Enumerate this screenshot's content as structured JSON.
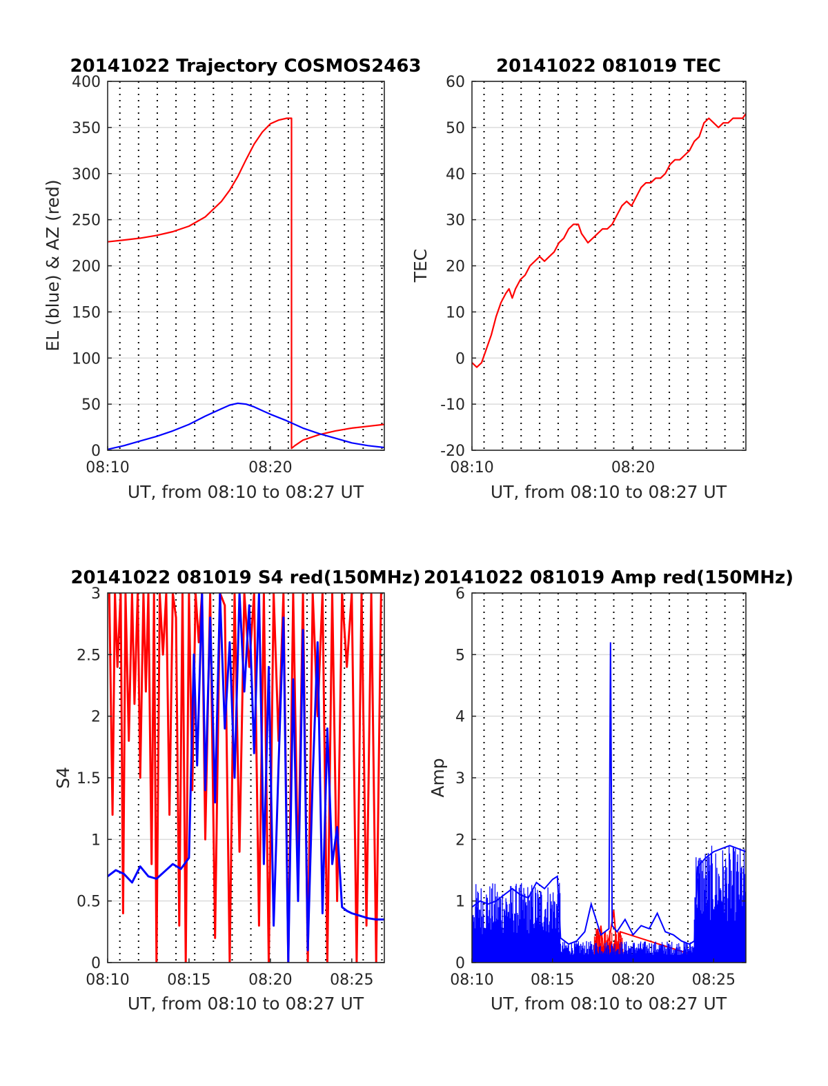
{
  "chart_data": [
    {
      "id": "traj",
      "type": "line",
      "title": "20141022 Trajectory COSMOS2463",
      "xlabel": "UT, from 08:10 to 08:27 UT",
      "ylabel": "EL (blue) & AZ (red)",
      "xlim": [
        0,
        17
      ],
      "ylim": [
        0,
        400
      ],
      "xticks": [
        0,
        10
      ],
      "xtick_labels": [
        "08:10",
        "08:20"
      ],
      "yticks": [
        0,
        50,
        100,
        150,
        200,
        250,
        300,
        350,
        400
      ],
      "ytick_labels": [
        "0",
        "50",
        "100",
        "150",
        "200",
        "250",
        "300",
        "350",
        "400"
      ],
      "grid": true,
      "vertical_dotted_gridlines_minutes": [
        0.75,
        1.9,
        3.05,
        4.2,
        5.35,
        6.5,
        7.65,
        8.8,
        9.95,
        11.1,
        12.25,
        13.4,
        14.55,
        15.7,
        16.85
      ],
      "series": [
        {
          "color": "#ff0000",
          "x": [
            0,
            1,
            2,
            3,
            4,
            5,
            6,
            7,
            7.5,
            8,
            8.5,
            9,
            9.5,
            10,
            10.5,
            11,
            11.3,
            11.3,
            11.5,
            12,
            13,
            14,
            15,
            16,
            17
          ],
          "values": [
            226,
            228,
            230,
            233,
            237,
            243,
            253,
            270,
            282,
            297,
            315,
            332,
            345,
            354,
            358,
            360,
            360,
            2,
            5,
            11,
            17,
            21,
            24,
            26,
            28
          ]
        },
        {
          "color": "#0000ff",
          "x": [
            0,
            1,
            2,
            3,
            4,
            5,
            6,
            7,
            7.5,
            8,
            8.5,
            9,
            9.5,
            10,
            11,
            12,
            13,
            14,
            15,
            16,
            17
          ],
          "values": [
            1,
            5,
            10,
            15,
            21,
            28,
            37,
            45,
            49,
            51,
            50,
            47,
            43,
            39,
            32,
            24,
            18,
            13,
            8,
            5,
            3
          ]
        }
      ]
    },
    {
      "id": "tec",
      "type": "line",
      "title": "20141022 081019 TEC",
      "xlabel": "UT, from 08:10 to 08:27 UT",
      "ylabel": "TEC",
      "xlim": [
        0,
        17
      ],
      "ylim": [
        -20,
        60
      ],
      "xticks": [
        0,
        10
      ],
      "xtick_labels": [
        "08:10",
        "08:20"
      ],
      "yticks": [
        -20,
        -10,
        0,
        10,
        20,
        30,
        40,
        50,
        60
      ],
      "ytick_labels": [
        "-20",
        "-10",
        "0",
        "10",
        "20",
        "30",
        "40",
        "50",
        "60"
      ],
      "grid": true,
      "vertical_dotted_gridlines_minutes": [
        0.75,
        1.9,
        3.05,
        4.2,
        5.35,
        6.5,
        7.65,
        8.8,
        9.95,
        11.1,
        12.25,
        13.4,
        14.55,
        15.7,
        16.85
      ],
      "series": [
        {
          "color": "#ff0000",
          "x": [
            0,
            0.3,
            0.6,
            0.9,
            1.2,
            1.5,
            1.8,
            2.1,
            2.3,
            2.5,
            2.7,
            3.0,
            3.3,
            3.6,
            3.9,
            4.2,
            4.5,
            4.8,
            5.1,
            5.4,
            5.7,
            6.0,
            6.3,
            6.6,
            6.8,
            7.0,
            7.2,
            7.5,
            7.8,
            8.1,
            8.4,
            8.7,
            9.0,
            9.3,
            9.6,
            9.9,
            10.2,
            10.5,
            10.8,
            11.1,
            11.4,
            11.7,
            12.0,
            12.3,
            12.6,
            12.9,
            13.2,
            13.5,
            13.8,
            14.1,
            14.4,
            14.7,
            15.0,
            15.3,
            15.6,
            15.9,
            16.2,
            16.5,
            16.8,
            17.0
          ],
          "values": [
            -1,
            -2,
            -1,
            2,
            5,
            9,
            12,
            14,
            15,
            13,
            15,
            17,
            18,
            20,
            21,
            22,
            21,
            22,
            23,
            25,
            26,
            28,
            29,
            29,
            27,
            26,
            25,
            26,
            27,
            28,
            28,
            29,
            31,
            33,
            34,
            33,
            35,
            37,
            38,
            38,
            39,
            39,
            40,
            42,
            43,
            43,
            44,
            45,
            47,
            48,
            51,
            52,
            51,
            50,
            51,
            51,
            52,
            52,
            52,
            53
          ]
        }
      ]
    },
    {
      "id": "s4",
      "type": "line",
      "title": "20141022 081019 S4 red(150MHz)",
      "xlabel": "UT, from 08:10 to 08:27 UT",
      "ylabel": "S4",
      "xlim": [
        0,
        17
      ],
      "ylim": [
        0,
        3
      ],
      "xticks": [
        0,
        5,
        10,
        15
      ],
      "xtick_labels": [
        "08:10",
        "08:15",
        "08:20",
        "08:25"
      ],
      "yticks": [
        0,
        0.5,
        1,
        1.5,
        2,
        2.5,
        3
      ],
      "ytick_labels": [
        "0",
        "0.5",
        "1",
        "1.5",
        "2",
        "2.5",
        "3"
      ],
      "grid": true,
      "vertical_dotted_gridlines_minutes": [
        0.75,
        1.9,
        3.05,
        4.2,
        5.35,
        6.5,
        7.65,
        8.8,
        9.95,
        11.1,
        12.25,
        13.4,
        14.55,
        15.7,
        16.85
      ],
      "series": [
        {
          "color": "#ff0000",
          "x": [
            0.1,
            0.3,
            0.45,
            0.6,
            0.8,
            0.95,
            1.1,
            1.3,
            1.5,
            1.65,
            1.85,
            2.0,
            2.2,
            2.35,
            2.5,
            2.7,
            2.85,
            3.0,
            3.2,
            3.4,
            3.6,
            3.8,
            4.0,
            4.2,
            4.4,
            4.6,
            4.8,
            5.0,
            5.2,
            5.4,
            5.6,
            5.8,
            6.0,
            6.3,
            6.6,
            6.9,
            7.2,
            7.5,
            7.8,
            8.1,
            8.4,
            8.7,
            9.0,
            9.3,
            9.6,
            9.9,
            10.2,
            10.5,
            10.8,
            11.1,
            11.4,
            11.7,
            12.0,
            12.3,
            12.6,
            12.9,
            13.2,
            13.5,
            13.8,
            14.1,
            14.4,
            14.7,
            15.0,
            15.3,
            15.6,
            15.9,
            16.2,
            16.5,
            16.8
          ],
          "values": [
            3,
            1.2,
            3,
            2.4,
            3,
            0.4,
            3,
            1.8,
            3,
            2.1,
            3,
            1.5,
            3,
            2.2,
            3,
            0.8,
            3,
            0,
            3,
            2.5,
            3,
            1.2,
            3,
            2.8,
            0.3,
            3,
            0,
            3,
            1.4,
            3,
            2.6,
            3,
            1.0,
            3,
            0.2,
            3,
            2.9,
            0,
            3,
            0.9,
            3,
            2.4,
            3,
            0.3,
            3,
            0,
            3,
            1.8,
            3,
            0,
            3,
            0.7,
            3,
            0,
            3,
            2.0,
            3,
            0,
            3,
            0.5,
            3,
            2.4,
            3,
            0,
            3,
            0.3,
            3,
            0,
            3
          ]
        },
        {
          "color": "#0000ff",
          "x": [
            0,
            0.5,
            1.0,
            1.5,
            2.0,
            2.5,
            3.0,
            3.5,
            4.0,
            4.5,
            5.0,
            5.3,
            5.5,
            5.8,
            6.0,
            6.3,
            6.6,
            6.9,
            7.2,
            7.5,
            7.8,
            8.1,
            8.4,
            8.7,
            9.0,
            9.3,
            9.6,
            9.9,
            10.2,
            10.5,
            10.8,
            11.1,
            11.4,
            11.7,
            12.0,
            12.3,
            12.6,
            12.9,
            13.2,
            13.5,
            13.8,
            14.1,
            14.4,
            14.7,
            15.0,
            15.5,
            16.0,
            16.5,
            17.0
          ],
          "values": [
            0.7,
            0.75,
            0.72,
            0.65,
            0.78,
            0.7,
            0.68,
            0.74,
            0.8,
            0.76,
            0.85,
            2.5,
            1.6,
            3.0,
            1.4,
            2.8,
            1.3,
            3.0,
            1.9,
            2.6,
            1.5,
            3.0,
            2.2,
            2.9,
            1.7,
            3.0,
            0.8,
            2.4,
            0.3,
            1.6,
            2.8,
            0,
            2.3,
            0.5,
            2.7,
            0.1,
            1.5,
            2.6,
            0.4,
            1.9,
            0.8,
            1.1,
            0.45,
            0.42,
            0.4,
            0.38,
            0.36,
            0.35,
            0.35
          ]
        }
      ]
    },
    {
      "id": "amp",
      "type": "line",
      "title": "20141022 081019 Amp red(150MHz)",
      "xlabel": "UT, from 08:10 to 08:27 UT",
      "ylabel": "Amp",
      "xlim": [
        0,
        17
      ],
      "ylim": [
        0,
        6
      ],
      "xticks": [
        0,
        5,
        10,
        15
      ],
      "xtick_labels": [
        "08:10",
        "08:15",
        "08:20",
        "08:25"
      ],
      "yticks": [
        0,
        1,
        2,
        3,
        4,
        5,
        6
      ],
      "ytick_labels": [
        "0",
        "1",
        "2",
        "3",
        "4",
        "5",
        "6"
      ],
      "grid": true,
      "vertical_dotted_gridlines_minutes": [
        0.75,
        1.9,
        3.05,
        4.2,
        5.35,
        6.5,
        7.65,
        8.8,
        9.95,
        11.1,
        12.25,
        13.4,
        14.55,
        15.7,
        16.85
      ],
      "series": [
        {
          "color": "#ff0000",
          "x": [
            7.6,
            7.8,
            7.9,
            8.0,
            8.2,
            8.6,
            8.8,
            9.0,
            9.2,
            14.0,
            14.5,
            15.0,
            15.5,
            16.0,
            16.5,
            17.0
          ],
          "values": [
            0.2,
            0.55,
            0.2,
            0.6,
            0.1,
            0.5,
            0.85,
            0.2,
            0.5,
            0.1,
            0.15,
            0.12,
            0.18,
            0.1,
            0.15,
            0.1
          ],
          "band": true,
          "band_spans": [
            [
              7.6,
              9.4,
              0.55
            ],
            [
              13.8,
              17.0,
              0.15
            ]
          ]
        },
        {
          "color": "#0000ff",
          "x": [
            0,
            0.5,
            1.0,
            1.5,
            2.0,
            2.5,
            3.0,
            3.5,
            4.0,
            4.5,
            5.0,
            5.3,
            5.5,
            6.0,
            6.5,
            7.0,
            7.4,
            8.0,
            8.5,
            8.6,
            8.7,
            9.0,
            9.5,
            10.0,
            10.5,
            11.0,
            11.5,
            12.0,
            12.5,
            13.0,
            13.5,
            13.8,
            14.0,
            14.5,
            15.0,
            15.5,
            16.0,
            16.5,
            17.0
          ],
          "values": [
            0.9,
            1.0,
            0.95,
            1.0,
            1.1,
            1.2,
            1.1,
            1.05,
            1.3,
            1.2,
            1.35,
            1.4,
            0.4,
            0.3,
            0.35,
            0.5,
            0.95,
            0.45,
            0.55,
            5.2,
            0.6,
            0.5,
            0.7,
            0.45,
            0.6,
            0.55,
            0.8,
            0.5,
            0.45,
            0.35,
            0.3,
            0.35,
            1.55,
            1.7,
            1.8,
            1.85,
            1.9,
            1.85,
            1.8
          ],
          "band": true,
          "band_spans": [
            [
              0.0,
              5.5,
              1.3
            ],
            [
              5.5,
              13.8,
              0.35
            ],
            [
              13.8,
              17.0,
              1.9
            ]
          ]
        }
      ]
    }
  ]
}
